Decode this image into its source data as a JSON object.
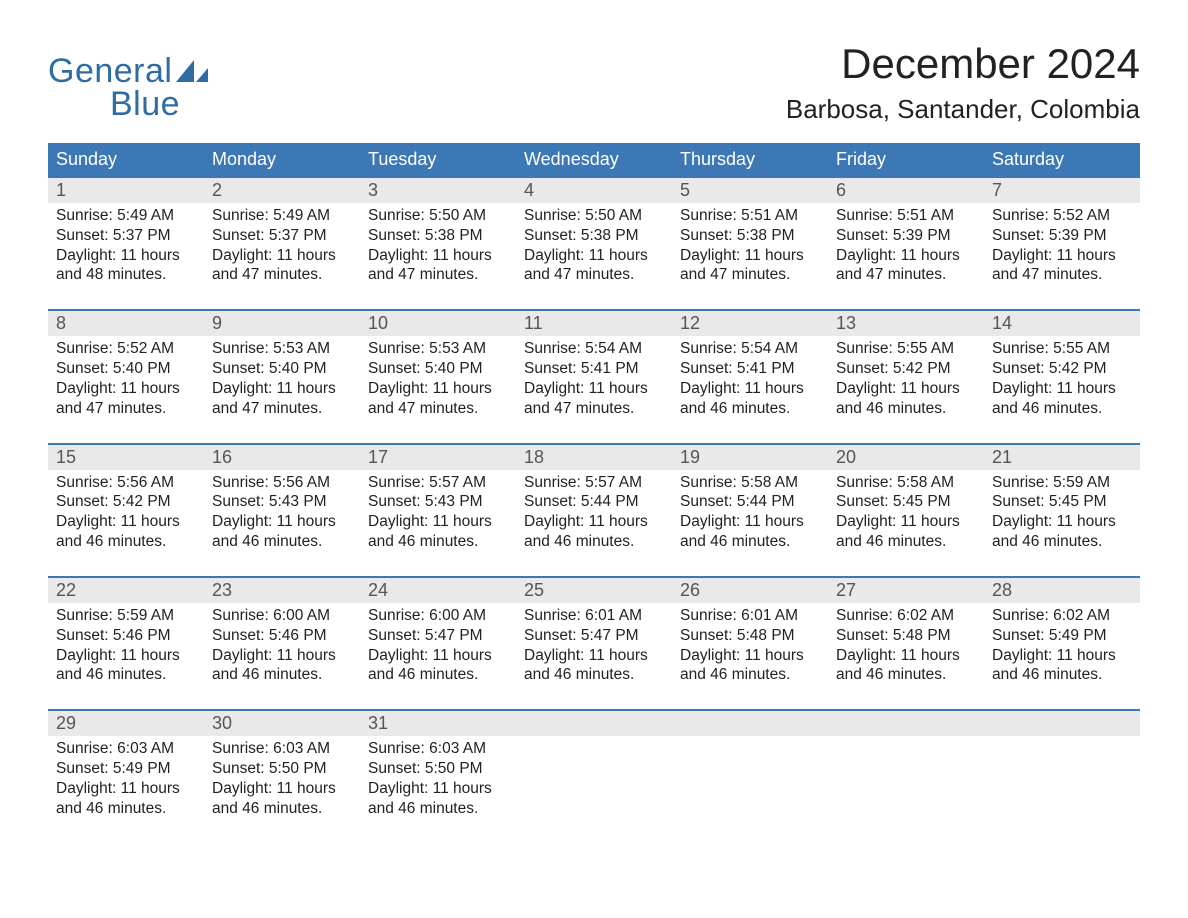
{
  "logo": {
    "word1": "General",
    "word2": "Blue",
    "text_color": "#2e6da4",
    "sail_color": "#2e6da4"
  },
  "title": "December 2024",
  "location": "Barbosa, Santander, Colombia",
  "colors": {
    "header_bg": "#3b78b5",
    "header_text": "#ffffff",
    "week_border": "#3b78b5",
    "daynum_bg": "#e9e9e9",
    "daynum_text": "#555555",
    "body_text": "#222222",
    "background": "#ffffff"
  },
  "typography": {
    "title_fontsize": 42,
    "location_fontsize": 26,
    "dayheader_fontsize": 18,
    "body_fontsize": 15.5,
    "font_family": "Arial"
  },
  "layout": {
    "columns": 7,
    "cell_line_height": 1.28
  },
  "day_headers": [
    "Sunday",
    "Monday",
    "Tuesday",
    "Wednesday",
    "Thursday",
    "Friday",
    "Saturday"
  ],
  "labels": {
    "sunrise": "Sunrise:",
    "sunset": "Sunset:",
    "daylight": "Daylight:"
  },
  "weeks": [
    [
      {
        "day": "1",
        "sunrise": "5:49 AM",
        "sunset": "5:37 PM",
        "daylight_l1": "11 hours",
        "daylight_l2": "and 48 minutes."
      },
      {
        "day": "2",
        "sunrise": "5:49 AM",
        "sunset": "5:37 PM",
        "daylight_l1": "11 hours",
        "daylight_l2": "and 47 minutes."
      },
      {
        "day": "3",
        "sunrise": "5:50 AM",
        "sunset": "5:38 PM",
        "daylight_l1": "11 hours",
        "daylight_l2": "and 47 minutes."
      },
      {
        "day": "4",
        "sunrise": "5:50 AM",
        "sunset": "5:38 PM",
        "daylight_l1": "11 hours",
        "daylight_l2": "and 47 minutes."
      },
      {
        "day": "5",
        "sunrise": "5:51 AM",
        "sunset": "5:38 PM",
        "daylight_l1": "11 hours",
        "daylight_l2": "and 47 minutes."
      },
      {
        "day": "6",
        "sunrise": "5:51 AM",
        "sunset": "5:39 PM",
        "daylight_l1": "11 hours",
        "daylight_l2": "and 47 minutes."
      },
      {
        "day": "7",
        "sunrise": "5:52 AM",
        "sunset": "5:39 PM",
        "daylight_l1": "11 hours",
        "daylight_l2": "and 47 minutes."
      }
    ],
    [
      {
        "day": "8",
        "sunrise": "5:52 AM",
        "sunset": "5:40 PM",
        "daylight_l1": "11 hours",
        "daylight_l2": "and 47 minutes."
      },
      {
        "day": "9",
        "sunrise": "5:53 AM",
        "sunset": "5:40 PM",
        "daylight_l1": "11 hours",
        "daylight_l2": "and 47 minutes."
      },
      {
        "day": "10",
        "sunrise": "5:53 AM",
        "sunset": "5:40 PM",
        "daylight_l1": "11 hours",
        "daylight_l2": "and 47 minutes."
      },
      {
        "day": "11",
        "sunrise": "5:54 AM",
        "sunset": "5:41 PM",
        "daylight_l1": "11 hours",
        "daylight_l2": "and 47 minutes."
      },
      {
        "day": "12",
        "sunrise": "5:54 AM",
        "sunset": "5:41 PM",
        "daylight_l1": "11 hours",
        "daylight_l2": "and 46 minutes."
      },
      {
        "day": "13",
        "sunrise": "5:55 AM",
        "sunset": "5:42 PM",
        "daylight_l1": "11 hours",
        "daylight_l2": "and 46 minutes."
      },
      {
        "day": "14",
        "sunrise": "5:55 AM",
        "sunset": "5:42 PM",
        "daylight_l1": "11 hours",
        "daylight_l2": "and 46 minutes."
      }
    ],
    [
      {
        "day": "15",
        "sunrise": "5:56 AM",
        "sunset": "5:42 PM",
        "daylight_l1": "11 hours",
        "daylight_l2": "and 46 minutes."
      },
      {
        "day": "16",
        "sunrise": "5:56 AM",
        "sunset": "5:43 PM",
        "daylight_l1": "11 hours",
        "daylight_l2": "and 46 minutes."
      },
      {
        "day": "17",
        "sunrise": "5:57 AM",
        "sunset": "5:43 PM",
        "daylight_l1": "11 hours",
        "daylight_l2": "and 46 minutes."
      },
      {
        "day": "18",
        "sunrise": "5:57 AM",
        "sunset": "5:44 PM",
        "daylight_l1": "11 hours",
        "daylight_l2": "and 46 minutes."
      },
      {
        "day": "19",
        "sunrise": "5:58 AM",
        "sunset": "5:44 PM",
        "daylight_l1": "11 hours",
        "daylight_l2": "and 46 minutes."
      },
      {
        "day": "20",
        "sunrise": "5:58 AM",
        "sunset": "5:45 PM",
        "daylight_l1": "11 hours",
        "daylight_l2": "and 46 minutes."
      },
      {
        "day": "21",
        "sunrise": "5:59 AM",
        "sunset": "5:45 PM",
        "daylight_l1": "11 hours",
        "daylight_l2": "and 46 minutes."
      }
    ],
    [
      {
        "day": "22",
        "sunrise": "5:59 AM",
        "sunset": "5:46 PM",
        "daylight_l1": "11 hours",
        "daylight_l2": "and 46 minutes."
      },
      {
        "day": "23",
        "sunrise": "6:00 AM",
        "sunset": "5:46 PM",
        "daylight_l1": "11 hours",
        "daylight_l2": "and 46 minutes."
      },
      {
        "day": "24",
        "sunrise": "6:00 AM",
        "sunset": "5:47 PM",
        "daylight_l1": "11 hours",
        "daylight_l2": "and 46 minutes."
      },
      {
        "day": "25",
        "sunrise": "6:01 AM",
        "sunset": "5:47 PM",
        "daylight_l1": "11 hours",
        "daylight_l2": "and 46 minutes."
      },
      {
        "day": "26",
        "sunrise": "6:01 AM",
        "sunset": "5:48 PM",
        "daylight_l1": "11 hours",
        "daylight_l2": "and 46 minutes."
      },
      {
        "day": "27",
        "sunrise": "6:02 AM",
        "sunset": "5:48 PM",
        "daylight_l1": "11 hours",
        "daylight_l2": "and 46 minutes."
      },
      {
        "day": "28",
        "sunrise": "6:02 AM",
        "sunset": "5:49 PM",
        "daylight_l1": "11 hours",
        "daylight_l2": "and 46 minutes."
      }
    ],
    [
      {
        "day": "29",
        "sunrise": "6:03 AM",
        "sunset": "5:49 PM",
        "daylight_l1": "11 hours",
        "daylight_l2": "and 46 minutes."
      },
      {
        "day": "30",
        "sunrise": "6:03 AM",
        "sunset": "5:50 PM",
        "daylight_l1": "11 hours",
        "daylight_l2": "and 46 minutes."
      },
      {
        "day": "31",
        "sunrise": "6:03 AM",
        "sunset": "5:50 PM",
        "daylight_l1": "11 hours",
        "daylight_l2": "and 46 minutes."
      },
      null,
      null,
      null,
      null
    ]
  ]
}
